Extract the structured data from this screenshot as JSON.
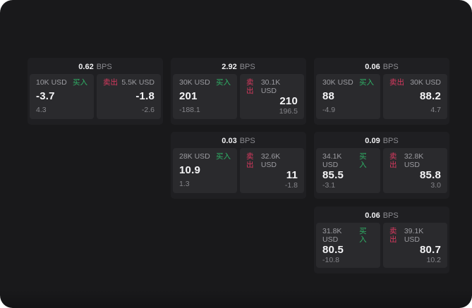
{
  "theme": {
    "page_background": "#19191b",
    "card_background": "#1f1f22",
    "panel_background": "#2a2a2d",
    "buy_color": "#2fb166",
    "sell_color": "#d8395f"
  },
  "cards": [
    {
      "col": 1,
      "row": 1,
      "bps": "0.62",
      "unit": "BPS",
      "buy": {
        "side": "买入",
        "amount": "10K USD",
        "value": "-3.7",
        "sub": "4.3"
      },
      "sell": {
        "side": "卖出",
        "amount": "5.5K USD",
        "value": "-1.8",
        "sub": "-2.6"
      }
    },
    {
      "col": 2,
      "row": 1,
      "bps": "2.92",
      "unit": "BPS",
      "buy": {
        "side": "买入",
        "amount": "30K USD",
        "value": "201",
        "sub": "-188.1"
      },
      "sell": {
        "side": "卖出",
        "amount": "30.1K USD",
        "value": "210",
        "sub": "196.5"
      }
    },
    {
      "col": 3,
      "row": 1,
      "bps": "0.06",
      "unit": "BPS",
      "buy": {
        "side": "买入",
        "amount": "30K USD",
        "value": "88",
        "sub": "-4.9"
      },
      "sell": {
        "side": "卖出",
        "amount": "30K USD",
        "value": "88.2",
        "sub": "4.7"
      }
    },
    {
      "col": 2,
      "row": 2,
      "bps": "0.03",
      "unit": "BPS",
      "buy": {
        "side": "买入",
        "amount": "28K USD",
        "value": "10.9",
        "sub": "1.3"
      },
      "sell": {
        "side": "卖出",
        "amount": "32.6K USD",
        "value": "11",
        "sub": "-1.8"
      }
    },
    {
      "col": 3,
      "row": 2,
      "bps": "0.09",
      "unit": "BPS",
      "buy": {
        "side": "买入",
        "amount": "34.1K USD",
        "value": "85.5",
        "sub": "-3.1"
      },
      "sell": {
        "side": "卖出",
        "amount": "32.8K USD",
        "value": "85.8",
        "sub": "3.0"
      }
    },
    {
      "col": 3,
      "row": 3,
      "bps": "0.06",
      "unit": "BPS",
      "buy": {
        "side": "买入",
        "amount": "31.8K USD",
        "value": "80.5",
        "sub": "-10.8"
      },
      "sell": {
        "side": "卖出",
        "amount": "39.1K USD",
        "value": "80.7",
        "sub": "10.2"
      }
    }
  ]
}
